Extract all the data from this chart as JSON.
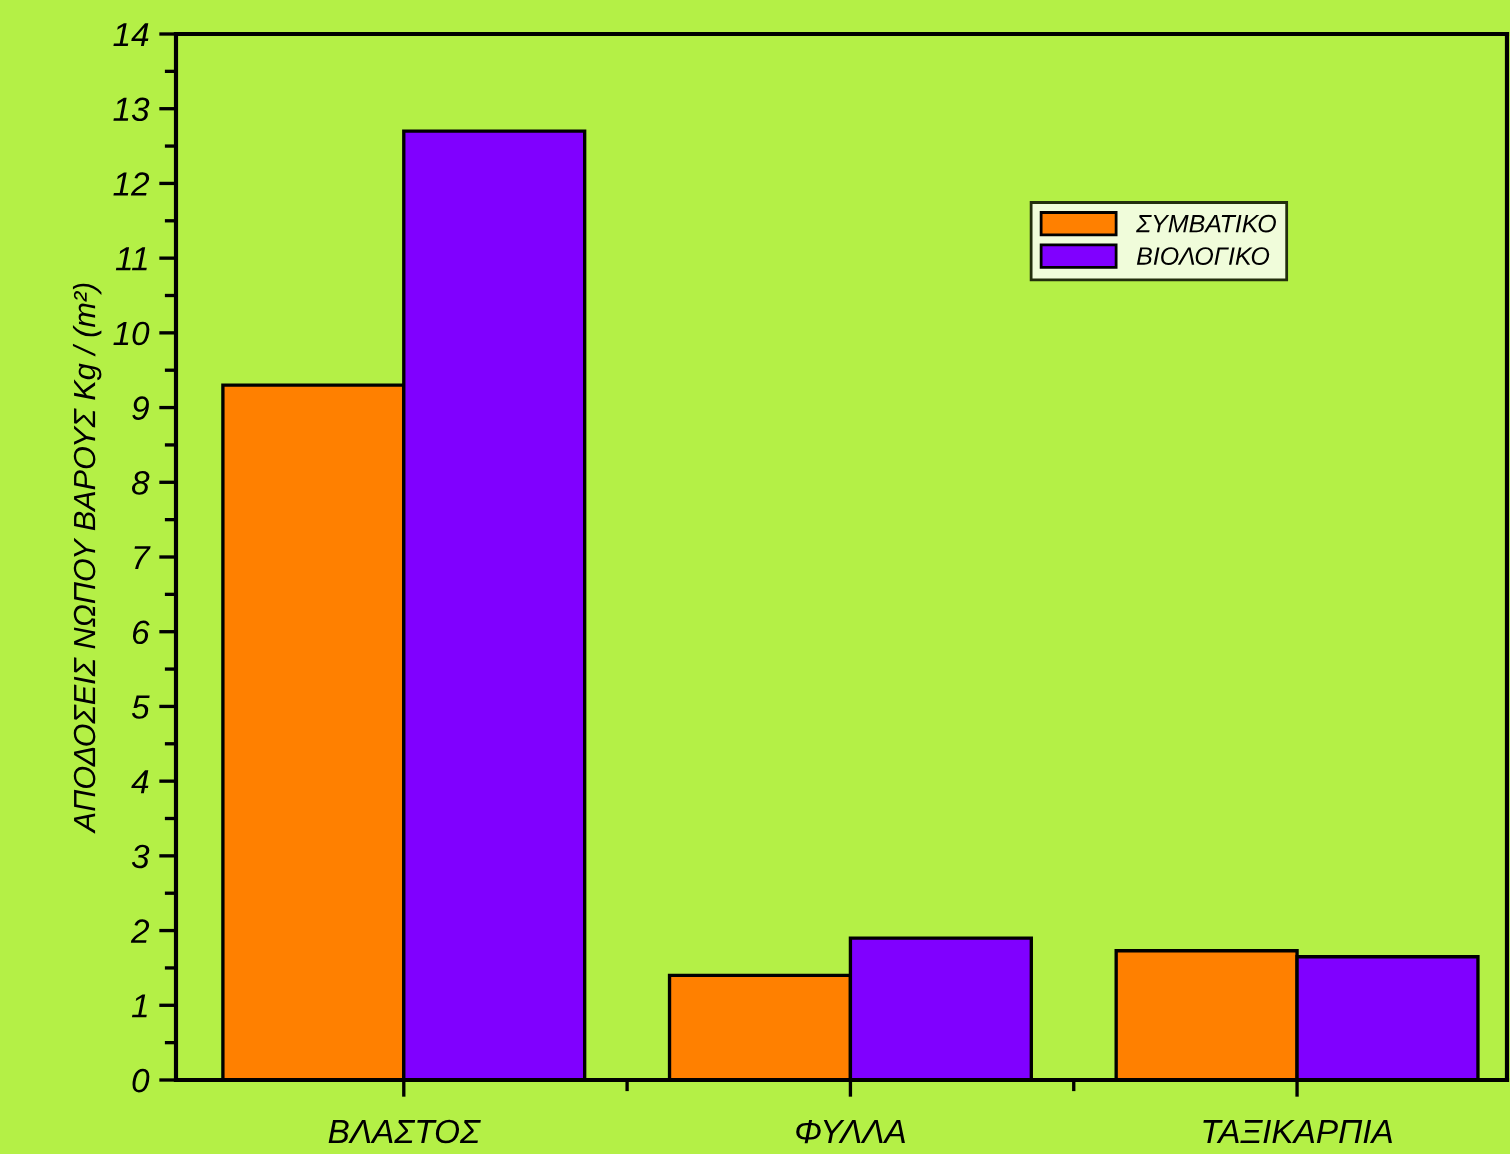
{
  "chart_data": {
    "type": "bar",
    "ylabel": "ΑΠΟΔΟΣΕΙΣ ΝΩΠΟΥ ΒΑΡΟΥΣ Kg / (m²)",
    "categories": [
      "ΒΛΑΣΤΟΣ",
      "ΦΥΛΛΑ",
      "ΤΑΞΙΚΑΡΠΙΑ"
    ],
    "series": [
      {
        "name": "ΣΥΜΒΑΤΙΚΟ",
        "color": "#ff8000",
        "values": [
          9.3,
          1.4,
          1.73
        ]
      },
      {
        "name": "ΒΙΟΛΟΓΙΚΟ",
        "color": "#8000ff",
        "values": [
          12.7,
          1.9,
          1.65
        ]
      }
    ],
    "ylim": [
      0,
      14
    ],
    "yticks": [
      0,
      1,
      2,
      3,
      4,
      5,
      6,
      7,
      8,
      9,
      10,
      11,
      12,
      13,
      14
    ],
    "grid": false,
    "legend": "top right"
  }
}
